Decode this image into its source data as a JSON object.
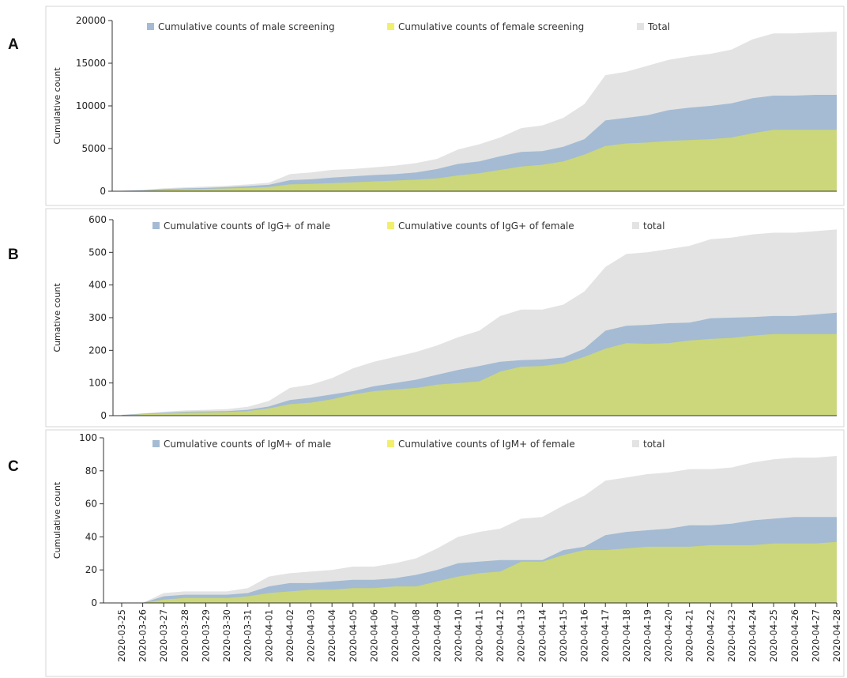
{
  "dates": [
    "2020-03-25",
    "2020-03-26",
    "2020-03-27",
    "2020-03-28",
    "2020-03-29",
    "2020-03-30",
    "2020-03-31",
    "2020-04-01",
    "2020-04-02",
    "2020-04-03",
    "2020-04-04",
    "2020-04-05",
    "2020-04-06",
    "2020-04-07",
    "2020-04-08",
    "2020-04-09",
    "2020-04-10",
    "2020-04-11",
    "2020-04-12",
    "2020-04-13",
    "2020-04-14",
    "2020-04-15",
    "2020-04-16",
    "2020-04-17",
    "2020-04-18",
    "2020-04-19",
    "2020-04-20",
    "2020-04-21",
    "2020-04-22",
    "2020-04-23",
    "2020-04-24",
    "2020-04-25",
    "2020-04-26",
    "2020-04-27",
    "2020-04-28"
  ],
  "colors": {
    "male": "#a4bbd3",
    "female": "#cbd77a",
    "total": "#e3e3e3",
    "axis": "#333333"
  },
  "chart_data": [
    {
      "panel": "A",
      "type": "area",
      "ylabel": "Cumulative count",
      "ylim": [
        0,
        20000
      ],
      "yticks": [
        0,
        5000,
        10000,
        15000,
        20000
      ],
      "legend_position": "top",
      "series": [
        {
          "name": "Cumulative counts of male screening",
          "key": "male",
          "values": [
            50,
            120,
            250,
            330,
            400,
            480,
            600,
            750,
            1300,
            1400,
            1600,
            1750,
            1900,
            2000,
            2200,
            2600,
            3200,
            3500,
            4100,
            4600,
            4700,
            5200,
            6100,
            8300,
            8600,
            8900,
            9500,
            9800,
            10000,
            10300,
            10900,
            11200,
            11200,
            11300,
            11300
          ]
        },
        {
          "name": "Cumulative counts of female screening",
          "key": "female",
          "values": [
            20,
            60,
            150,
            230,
            280,
            320,
            400,
            500,
            800,
            850,
            950,
            1050,
            1150,
            1250,
            1350,
            1500,
            1850,
            2100,
            2500,
            2900,
            3100,
            3500,
            4300,
            5300,
            5600,
            5700,
            5900,
            6000,
            6100,
            6300,
            6800,
            7200,
            7200,
            7200,
            7200
          ]
        },
        {
          "name": "Total",
          "key": "total",
          "values": [
            60,
            150,
            350,
            450,
            550,
            650,
            800,
            1000,
            2000,
            2200,
            2500,
            2600,
            2800,
            3000,
            3300,
            3800,
            4900,
            5500,
            6300,
            7400,
            7700,
            8600,
            10200,
            13600,
            14000,
            14700,
            15400,
            15800,
            16100,
            16600,
            17800,
            18500,
            18500,
            18600,
            18700
          ]
        }
      ]
    },
    {
      "panel": "B",
      "type": "area",
      "ylabel": "Cumative count",
      "ylim": [
        0,
        600
      ],
      "yticks": [
        0,
        100,
        200,
        300,
        400,
        500,
        600
      ],
      "legend_position": "top",
      "series": [
        {
          "name": "Cumulative counts of IgG+ of male",
          "key": "male",
          "values": [
            2,
            6,
            9,
            12,
            13,
            14,
            18,
            28,
            48,
            55,
            65,
            75,
            90,
            100,
            110,
            125,
            140,
            152,
            165,
            170,
            172,
            178,
            205,
            260,
            275,
            278,
            283,
            285,
            298,
            300,
            302,
            305,
            305,
            310,
            315
          ]
        },
        {
          "name": "Cumulative counts of IgG+ of female",
          "key": "female",
          "values": [
            1,
            4,
            7,
            9,
            10,
            11,
            14,
            22,
            35,
            40,
            50,
            65,
            75,
            80,
            85,
            95,
            100,
            105,
            135,
            150,
            152,
            160,
            180,
            205,
            222,
            220,
            222,
            230,
            235,
            238,
            245,
            250,
            250,
            250,
            250
          ]
        },
        {
          "name": "total",
          "key": "total",
          "values": [
            3,
            7,
            12,
            16,
            18,
            20,
            27,
            45,
            85,
            95,
            115,
            145,
            165,
            180,
            195,
            215,
            240,
            260,
            305,
            325,
            325,
            340,
            380,
            455,
            495,
            500,
            510,
            520,
            540,
            545,
            555,
            560,
            560,
            565,
            570
          ]
        }
      ]
    },
    {
      "panel": "C",
      "type": "area",
      "ylabel": "Cumulative count",
      "ylim": [
        0,
        100
      ],
      "yticks": [
        0,
        20,
        40,
        60,
        80,
        100
      ],
      "legend_position": "top",
      "series": [
        {
          "name": "Cumulative counts of IgM+ of male",
          "key": "male",
          "values": [
            0,
            0,
            4,
            5,
            5,
            5,
            6,
            10,
            12,
            12,
            13,
            14,
            14,
            15,
            17,
            20,
            24,
            25,
            26,
            26,
            26,
            32,
            34,
            41,
            43,
            44,
            45,
            47,
            47,
            48,
            50,
            51,
            52,
            52,
            52
          ]
        },
        {
          "name": "Cumulative counts of IgM+ of female",
          "key": "female",
          "values": [
            0,
            0,
            2,
            3,
            3,
            3,
            4,
            6,
            7,
            8,
            8,
            9,
            9,
            10,
            10,
            13,
            16,
            18,
            19,
            25,
            25,
            29,
            32,
            32,
            33,
            34,
            34,
            34,
            35,
            35,
            35,
            36,
            36,
            36,
            37
          ]
        },
        {
          "name": "total",
          "key": "total",
          "values": [
            0,
            0,
            6,
            7,
            7,
            7,
            9,
            16,
            18,
            19,
            20,
            22,
            22,
            24,
            27,
            33,
            40,
            43,
            45,
            51,
            52,
            59,
            65,
            74,
            76,
            78,
            79,
            81,
            81,
            82,
            85,
            87,
            88,
            88,
            89
          ]
        }
      ]
    }
  ]
}
